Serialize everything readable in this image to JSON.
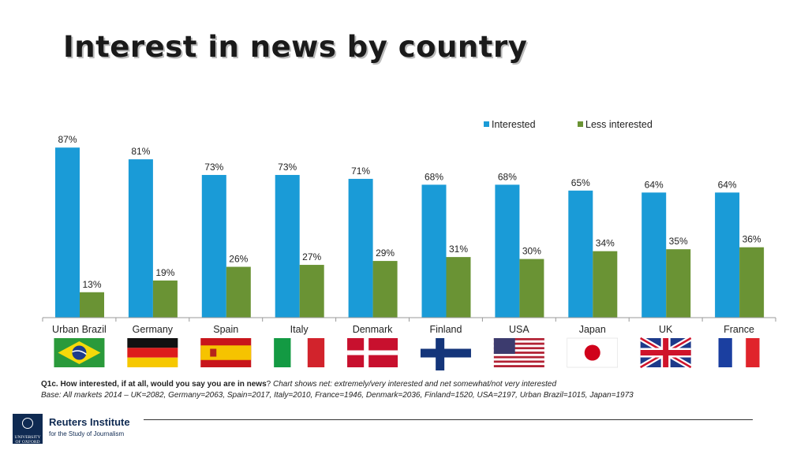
{
  "title": "Interest in news by country",
  "chart_data": {
    "type": "bar",
    "categories": [
      "Urban Brazil",
      "Germany",
      "Spain",
      "Italy",
      "Denmark",
      "Finland",
      "USA",
      "Japan",
      "UK",
      "France"
    ],
    "series": [
      {
        "name": "Interested",
        "values": [
          87,
          81,
          73,
          73,
          71,
          68,
          68,
          65,
          64,
          64
        ],
        "labels": [
          "87%",
          "81%",
          "73%",
          "73%",
          "71%",
          "68%",
          "68%",
          "65%",
          "64%",
          "64%"
        ],
        "color": "#1a9bd7"
      },
      {
        "name": "Less interested",
        "values": [
          13,
          19,
          26,
          27,
          29,
          31,
          30,
          34,
          35,
          36
        ],
        "labels": [
          "13%",
          "19%",
          "26%",
          "27%",
          "29%",
          "31%",
          "30%",
          "34%",
          "35%",
          "36%"
        ],
        "color": "#6a9334"
      }
    ],
    "ylim": [
      0,
      100
    ],
    "grid": false,
    "legend": "top-right",
    "flags": [
      "brazil",
      "germany",
      "spain",
      "italy",
      "denmark",
      "finland",
      "usa",
      "japan",
      "uk",
      "france"
    ]
  },
  "notes": {
    "question_bold": "Q1c. How interested, if at all, would you say you are in news",
    "question_end": "? ",
    "question_italic": "Chart shows net: extremely/very interested and net somewhat/not very interested",
    "base": "Base: All markets 2014 – UK=2082, Germany=2063, Spain=2017, Italy=2010, France=1946, Denmark=2036, Finland=1520, USA=2197, Urban Brazil=1015, Japan=1973"
  },
  "logo": {
    "seal_text": "UNIVERSITY OF OXFORD",
    "name": "Reuters Institute",
    "subtitle": "for the Study of Journalism"
  }
}
